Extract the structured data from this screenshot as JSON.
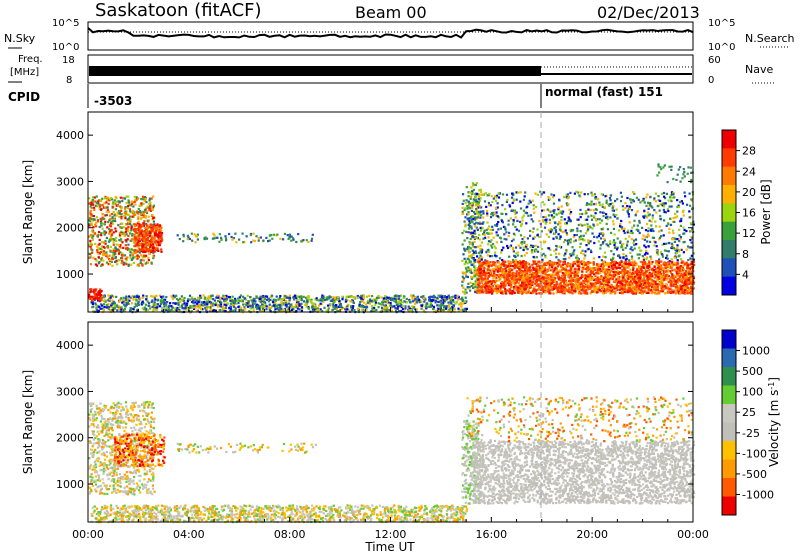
{
  "header": {
    "station": "Saskatoon (fitACF)",
    "beam": "Beam 00",
    "date": "02/Dec/2013"
  },
  "top_panels": {
    "nsky": {
      "left_label": "N.Sky",
      "right_label": "N.Search",
      "tick_top": "10^5",
      "tick_bottom": "10^0",
      "right_tick_top": "10^5",
      "right_tick_bottom": "10^0"
    },
    "freq": {
      "left_label_1": "Freq.",
      "left_label_2": "[MHz]",
      "tick_top": "18",
      "tick_bottom": "8",
      "right_label": "Nave",
      "right_tick_top": "60",
      "right_tick_bottom": "0"
    },
    "cpid": {
      "label": "CPID",
      "mode_1": "-3503",
      "mode_2": "normal (fast) 151"
    }
  },
  "colors": {
    "power_scale": [
      "#0000e0",
      "#1f4fb8",
      "#2f7d6a",
      "#3aa03a",
      "#9cd40e",
      "#ffb000",
      "#ff7a00",
      "#ff3b00",
      "#ee0000"
    ],
    "velocity_scale": [
      "#ee0000",
      "#ff5a00",
      "#ff9a00",
      "#ffc000",
      "#c0c0b8",
      "#c8c8c0",
      "#66cc33",
      "#2f8f4f",
      "#2a6ab0",
      "#0000cc"
    ]
  },
  "chart_data": [
    {
      "type": "heatmap",
      "title": "",
      "ylabel": "Slant Range [km]",
      "xlabel": "",
      "ylim": [
        180,
        4500
      ],
      "yticks": [
        "1000",
        "2000",
        "3000",
        "4000"
      ],
      "colorbar": {
        "label": "Power [dB]",
        "ticks": [
          "4",
          "8",
          "12",
          "16",
          "20",
          "24",
          "28"
        ],
        "range": [
          0,
          32
        ]
      },
      "scatter_regions": [
        {
          "x": [
            0.0,
            2.5
          ],
          "y": [
            1300,
            2600
          ],
          "level": "mixed-high"
        },
        {
          "x": [
            1.8,
            3.0
          ],
          "y": [
            1500,
            2100
          ],
          "level": "high"
        },
        {
          "x": [
            0.1,
            15.0
          ],
          "y": [
            200,
            600
          ],
          "level": "low"
        },
        {
          "x": [
            15.0,
            24.0
          ],
          "y": [
            500,
            1300
          ],
          "level": "high"
        },
        {
          "x": [
            15.0,
            24.0
          ],
          "y": [
            1300,
            2800
          ],
          "level": "low"
        }
      ]
    },
    {
      "type": "heatmap",
      "title": "",
      "ylabel": "Slant Range [km]",
      "xlabel": "Time UT",
      "ylim": [
        180,
        4500
      ],
      "yticks": [
        "1000",
        "2000",
        "3000",
        "4000"
      ],
      "xticks": [
        "00:00",
        "04:00",
        "08:00",
        "12:00",
        "16:00",
        "20:00",
        "00:00"
      ],
      "colorbar": {
        "label": "Velocity [m s-1]",
        "ticks": [
          "1000",
          "500",
          "100",
          "25",
          "-25",
          "-100",
          "-500",
          "-1000"
        ],
        "range": [
          -1000,
          1000
        ]
      },
      "scatter_regions": [
        {
          "x": [
            0.0,
            2.5
          ],
          "y": [
            800,
            2800
          ],
          "level": "gray-mixed"
        },
        {
          "x": [
            1.0,
            3.0
          ],
          "y": [
            1400,
            2100
          ],
          "level": "negative"
        },
        {
          "x": [
            0.1,
            15.0
          ],
          "y": [
            200,
            600
          ],
          "level": "slightly-positive"
        },
        {
          "x": [
            15.0,
            24.0
          ],
          "y": [
            600,
            2000
          ],
          "level": "gray"
        },
        {
          "x": [
            17.0,
            23.0
          ],
          "y": [
            2300,
            2700
          ],
          "level": "negative"
        }
      ]
    }
  ]
}
